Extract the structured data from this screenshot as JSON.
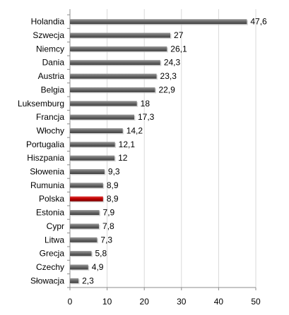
{
  "chart_data": {
    "type": "bar",
    "orientation": "horizontal",
    "categories": [
      "Holandia",
      "Szwecja",
      "Niemcy",
      "Dania",
      "Austria",
      "Belgia",
      "Luksemburg",
      "Francja",
      "Włochy",
      "Portugalia",
      "Hiszpania",
      "Słowenia",
      "Rumunia",
      "Polska",
      "Estonia",
      "Cypr",
      "Litwa",
      "Grecja",
      "Czechy",
      "Słowacja"
    ],
    "values": [
      47.6,
      27,
      26.1,
      24.3,
      23.3,
      22.9,
      18,
      17.3,
      14.2,
      12.1,
      12,
      9.3,
      8.9,
      8.9,
      7.9,
      7.8,
      7.3,
      5.8,
      4.9,
      2.3
    ],
    "value_labels": [
      "47,6",
      "27",
      "26,1",
      "24,3",
      "23,3",
      "22,9",
      "18",
      "17,3",
      "14,2",
      "12,1",
      "12",
      "9,3",
      "8,9",
      "8,9",
      "7,9",
      "7,8",
      "7,3",
      "5,8",
      "4,9",
      "2,3"
    ],
    "x_ticks": [
      "0",
      "10",
      "20",
      "30",
      "40",
      "50"
    ],
    "xlim": [
      0,
      50
    ],
    "title": "",
    "xlabel": "",
    "ylabel": "",
    "grid": "vertical",
    "legend": "none",
    "colors": {
      "default_bar": "#6b6b6b",
      "highlight_bar": "#c00000",
      "grid": "#d9d9d9",
      "axis": "#8c8c8c"
    },
    "highlight_category": "Polska"
  }
}
